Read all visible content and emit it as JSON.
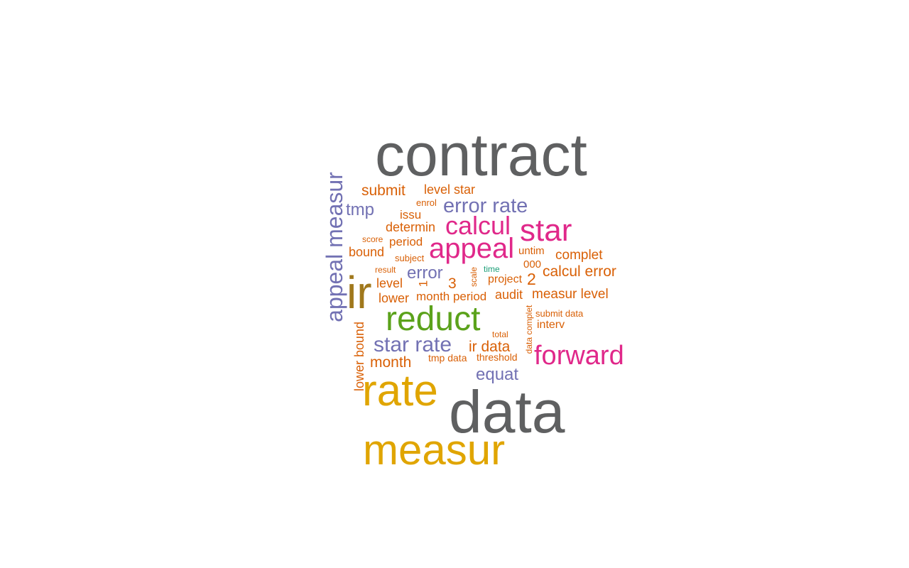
{
  "palette": {
    "gray": "#5f6061",
    "gold": "#e0a500",
    "olive": "#a0781c",
    "green": "#5ba21b",
    "pink": "#e0288a",
    "purple": "#7271b3",
    "orange": "#d96006",
    "teal": "#1b9e77"
  },
  "words": [
    {
      "text": "contract",
      "color": "gray"
    },
    {
      "text": "data",
      "color": "gray"
    },
    {
      "text": "measur",
      "color": "gold"
    },
    {
      "text": "rate",
      "color": "gold"
    },
    {
      "text": "ir",
      "color": "olive"
    },
    {
      "text": "reduct",
      "color": "green"
    },
    {
      "text": "appeal measur",
      "color": "purple"
    },
    {
      "text": "forward",
      "color": "pink"
    },
    {
      "text": "star",
      "color": "pink"
    },
    {
      "text": "appeal",
      "color": "pink"
    },
    {
      "text": "calcul",
      "color": "pink"
    },
    {
      "text": "error rate",
      "color": "purple"
    },
    {
      "text": "star rate",
      "color": "purple"
    },
    {
      "text": "tmp",
      "color": "purple"
    },
    {
      "text": "equat",
      "color": "purple"
    },
    {
      "text": "error",
      "color": "purple"
    },
    {
      "text": "submit",
      "color": "orange"
    },
    {
      "text": "level star",
      "color": "orange"
    },
    {
      "text": "enrol",
      "color": "orange"
    },
    {
      "text": "issu",
      "color": "orange"
    },
    {
      "text": "determin",
      "color": "orange"
    },
    {
      "text": "score",
      "color": "orange"
    },
    {
      "text": "period",
      "color": "orange"
    },
    {
      "text": "bound",
      "color": "orange"
    },
    {
      "text": "subject",
      "color": "orange"
    },
    {
      "text": "untim",
      "color": "orange"
    },
    {
      "text": "complet",
      "color": "orange"
    },
    {
      "text": "result",
      "color": "orange"
    },
    {
      "text": "000",
      "color": "orange"
    },
    {
      "text": "time",
      "color": "teal"
    },
    {
      "text": "calcul error",
      "color": "orange"
    },
    {
      "text": "scale",
      "color": "orange"
    },
    {
      "text": "1",
      "color": "orange"
    },
    {
      "text": "level",
      "color": "orange"
    },
    {
      "text": "3",
      "color": "orange"
    },
    {
      "text": "project",
      "color": "orange"
    },
    {
      "text": "2",
      "color": "orange"
    },
    {
      "text": "lower",
      "color": "orange"
    },
    {
      "text": "month period",
      "color": "orange"
    },
    {
      "text": "audit",
      "color": "orange"
    },
    {
      "text": "measur level",
      "color": "orange"
    },
    {
      "text": "data complet",
      "color": "orange"
    },
    {
      "text": "submit data",
      "color": "orange"
    },
    {
      "text": "interv",
      "color": "orange"
    },
    {
      "text": "total",
      "color": "orange"
    },
    {
      "text": "ir data",
      "color": "orange"
    },
    {
      "text": "lower bound",
      "color": "orange"
    },
    {
      "text": "tmp data",
      "color": "orange"
    },
    {
      "text": "threshold",
      "color": "orange"
    },
    {
      "text": "month",
      "color": "orange"
    }
  ]
}
